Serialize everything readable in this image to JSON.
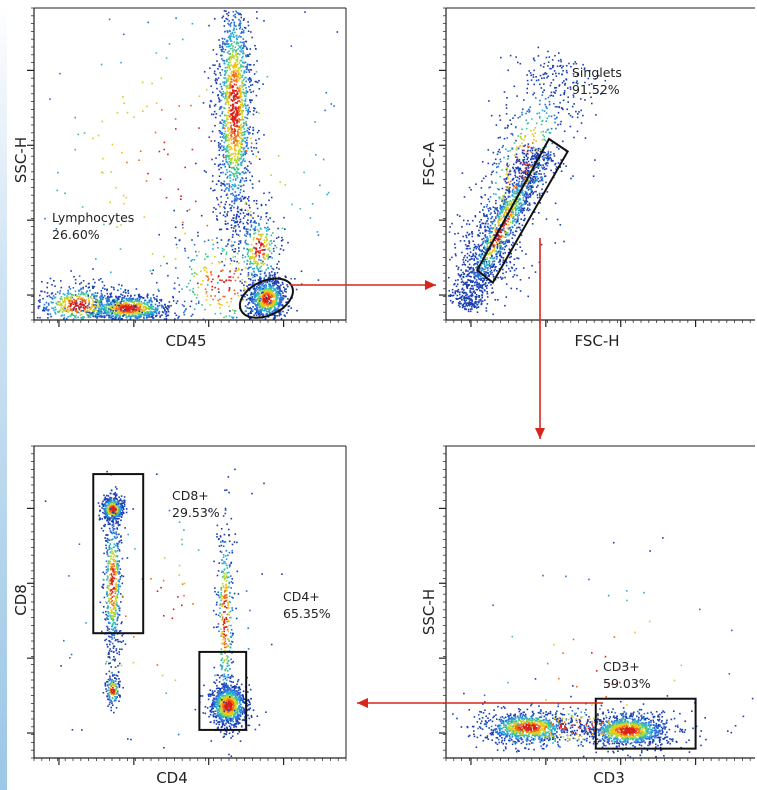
{
  "colors": {
    "density": [
      "#1a3fb0",
      "#2a6fd6",
      "#2aa9d8",
      "#45c48f",
      "#b9d92c",
      "#f4c21a",
      "#ef6a1a",
      "#d8201a"
    ],
    "arrow": "#d8261c",
    "gate": "#111111",
    "edge_tint": "#cfe3f3"
  },
  "chart_data": [
    {
      "id": "plot-cd45-ssc",
      "type": "scatter",
      "title": "",
      "xlabel": "CD45",
      "ylabel": "SSC-H",
      "grid": false,
      "populations": [
        {
          "cx": 0.3,
          "cy": 0.04,
          "sx": 0.07,
          "sy": 0.022,
          "n": 900
        },
        {
          "cx": 0.14,
          "cy": 0.05,
          "sx": 0.07,
          "sy": 0.035,
          "n": 500
        },
        {
          "cx": 0.64,
          "cy": 0.68,
          "sx": 0.03,
          "sy": 0.2,
          "n": 1500
        },
        {
          "cx": 0.745,
          "cy": 0.07,
          "sx": 0.03,
          "sy": 0.032,
          "n": 800
        },
        {
          "cx": 0.72,
          "cy": 0.23,
          "sx": 0.035,
          "sy": 0.06,
          "n": 300
        },
        {
          "cx": 0.6,
          "cy": 0.12,
          "sx": 0.1,
          "sy": 0.1,
          "n": 300
        },
        {
          "cx": 0.5,
          "cy": 0.5,
          "sx": 0.35,
          "sy": 0.35,
          "n": 250
        }
      ],
      "gates": [
        {
          "name": "Lymphocytes",
          "percent": "26.60%",
          "shape": "ellipse",
          "cx": 0.745,
          "cy": 0.07,
          "rx": 0.09,
          "ry": 0.055
        }
      ]
    },
    {
      "id": "plot-fsc",
      "type": "scatter",
      "title": "",
      "xlabel": "FSC-H",
      "ylabel": "FSC-A",
      "grid": false,
      "populations": [
        {
          "diag": true,
          "x0": 0.05,
          "y0": 0.04,
          "x1": 0.3,
          "y1": 0.55,
          "spread": 0.035,
          "n": 1500
        },
        {
          "diag": true,
          "x0": 0.1,
          "y0": 0.15,
          "x1": 0.38,
          "y1": 0.85,
          "spread": 0.08,
          "n": 700
        }
      ],
      "gates": [
        {
          "name": "Singlets",
          "percent": "91.52%",
          "shape": "polygon",
          "points": [
            [
              0.1,
              0.16
            ],
            [
              0.15,
              0.12
            ],
            [
              0.39,
              0.54
            ],
            [
              0.33,
              0.58
            ]
          ]
        }
      ]
    },
    {
      "id": "plot-cd4-cd8",
      "type": "scatter",
      "title": "",
      "xlabel": "CD4",
      "ylabel": "CD8",
      "grid": false,
      "populations": [
        {
          "cx": 0.25,
          "cy": 0.8,
          "sx": 0.018,
          "sy": 0.02,
          "n": 450
        },
        {
          "cx": 0.25,
          "cy": 0.56,
          "sx": 0.015,
          "sy": 0.12,
          "n": 500
        },
        {
          "cx": 0.25,
          "cy": 0.22,
          "sx": 0.012,
          "sy": 0.025,
          "n": 150
        },
        {
          "cx": 0.62,
          "cy": 0.17,
          "sx": 0.03,
          "sy": 0.035,
          "n": 1000
        },
        {
          "cx": 0.61,
          "cy": 0.45,
          "sx": 0.015,
          "sy": 0.16,
          "n": 350
        },
        {
          "cx": 0.4,
          "cy": 0.45,
          "sx": 0.2,
          "sy": 0.25,
          "n": 80
        }
      ],
      "gates": [
        {
          "name": "CD8+",
          "percent": "29.53%",
          "shape": "rect",
          "x": [
            0.19,
            0.35
          ],
          "y": [
            0.4,
            0.91
          ]
        },
        {
          "name": "CD4+",
          "percent": "65.35%",
          "shape": "rect",
          "x": [
            0.53,
            0.68
          ],
          "y": [
            0.09,
            0.34
          ]
        }
      ]
    },
    {
      "id": "plot-cd3-ssc",
      "type": "scatter",
      "title": "",
      "xlabel": "CD3",
      "ylabel": "SSC-H",
      "grid": false,
      "populations": [
        {
          "cx": 0.26,
          "cy": 0.1,
          "sx": 0.07,
          "sy": 0.025,
          "n": 900
        },
        {
          "cx": 0.58,
          "cy": 0.09,
          "sx": 0.065,
          "sy": 0.025,
          "n": 1100
        },
        {
          "cx": 0.42,
          "cy": 0.1,
          "sx": 0.2,
          "sy": 0.04,
          "n": 300
        },
        {
          "cx": 0.5,
          "cy": 0.3,
          "sx": 0.3,
          "sy": 0.2,
          "n": 60
        }
      ],
      "gates": [
        {
          "name": "CD3+",
          "percent": "59.03%",
          "shape": "rect",
          "x": [
            0.48,
            0.8
          ],
          "y": [
            0.03,
            0.19
          ]
        }
      ]
    }
  ]
}
